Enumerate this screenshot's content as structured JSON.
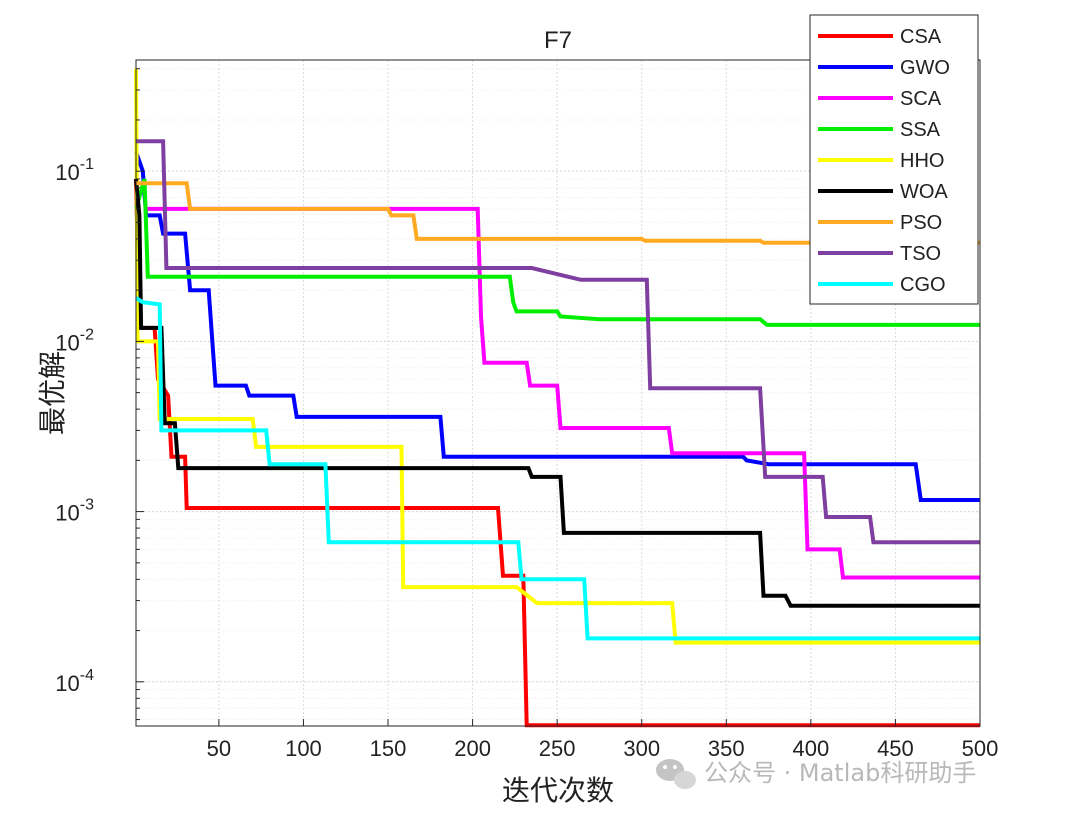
{
  "chart_data": {
    "type": "line",
    "title": "F7",
    "xlabel": "迭代次数",
    "ylabel": "最优解",
    "xlim": [
      1,
      500
    ],
    "ylim": [
      5.5e-05,
      0.45
    ],
    "yscale": "log",
    "grid": true,
    "legend_position": "top-right",
    "xticks": [
      50,
      100,
      150,
      200,
      250,
      300,
      350,
      400,
      450,
      500
    ],
    "yticks": [
      {
        "value": 0.0001,
        "base": "10",
        "exp": "-4"
      },
      {
        "value": 0.001,
        "base": "10",
        "exp": "-3"
      },
      {
        "value": 0.01,
        "base": "10",
        "exp": "-2"
      },
      {
        "value": 0.1,
        "base": "10",
        "exp": "-1"
      }
    ],
    "series": [
      {
        "name": "CSA",
        "color": "#ff0000",
        "points": [
          [
            1,
            0.09
          ],
          [
            3,
            0.012
          ],
          [
            12,
            0.012
          ],
          [
            14,
            0.006
          ],
          [
            20,
            0.0048
          ],
          [
            22,
            0.0021
          ],
          [
            30,
            0.0021
          ],
          [
            31,
            0.00105
          ],
          [
            215,
            0.00105
          ],
          [
            218,
            0.00042
          ],
          [
            230,
            0.00042
          ],
          [
            232,
            5.55e-05
          ],
          [
            500,
            5.55e-05
          ]
        ]
      },
      {
        "name": "GWO",
        "color": "#0000ff",
        "points": [
          [
            1,
            0.13
          ],
          [
            5,
            0.1
          ],
          [
            7,
            0.055
          ],
          [
            15,
            0.055
          ],
          [
            17,
            0.043
          ],
          [
            30,
            0.043
          ],
          [
            33,
            0.02
          ],
          [
            44,
            0.02
          ],
          [
            48,
            0.0055
          ],
          [
            66,
            0.0055
          ],
          [
            68,
            0.0048
          ],
          [
            94,
            0.0048
          ],
          [
            96,
            0.0036
          ],
          [
            181,
            0.0036
          ],
          [
            183,
            0.0021
          ],
          [
            360,
            0.0021
          ],
          [
            362,
            0.002
          ],
          [
            375,
            0.0019
          ],
          [
            462,
            0.0019
          ],
          [
            465,
            0.00117
          ],
          [
            500,
            0.00117
          ]
        ]
      },
      {
        "name": "SCA",
        "color": "#ff00ff",
        "points": [
          [
            7,
            0.06
          ],
          [
            203,
            0.06
          ],
          [
            205,
            0.014
          ],
          [
            207,
            0.0075
          ],
          [
            232,
            0.0075
          ],
          [
            234,
            0.0055
          ],
          [
            250,
            0.0055
          ],
          [
            252,
            0.0031
          ],
          [
            316,
            0.0031
          ],
          [
            318,
            0.0022
          ],
          [
            396,
            0.0022
          ],
          [
            398,
            0.0006
          ],
          [
            417,
            0.0006
          ],
          [
            419,
            0.00041
          ],
          [
            500,
            0.00041
          ]
        ]
      },
      {
        "name": "SSA",
        "color": "#00ee00",
        "points": [
          [
            1,
            0.06
          ],
          [
            6,
            0.09
          ],
          [
            8,
            0.024
          ],
          [
            222,
            0.024
          ],
          [
            224,
            0.017
          ],
          [
            226,
            0.015
          ],
          [
            250,
            0.015
          ],
          [
            252,
            0.014
          ],
          [
            275,
            0.0135
          ],
          [
            370,
            0.0135
          ],
          [
            374,
            0.0125
          ],
          [
            500,
            0.0125
          ]
        ]
      },
      {
        "name": "HHO",
        "color": "#ffff00",
        "points": [
          [
            1,
            0.4
          ],
          [
            2,
            0.01
          ],
          [
            14,
            0.01
          ],
          [
            15,
            0.0035
          ],
          [
            70,
            0.0035
          ],
          [
            72,
            0.0024
          ],
          [
            158,
            0.0024
          ],
          [
            159,
            0.00036
          ],
          [
            226,
            0.00036
          ],
          [
            238,
            0.00029
          ],
          [
            318,
            0.00029
          ],
          [
            320,
            0.00017
          ],
          [
            500,
            0.00017
          ]
        ]
      },
      {
        "name": "WOA",
        "color": "#000000",
        "points": [
          [
            1,
            0.09
          ],
          [
            3,
            0.055
          ],
          [
            4,
            0.012
          ],
          [
            16,
            0.012
          ],
          [
            18,
            0.0033
          ],
          [
            24,
            0.0033
          ],
          [
            26,
            0.0018
          ],
          [
            233,
            0.0018
          ],
          [
            235,
            0.0016
          ],
          [
            252,
            0.0016
          ],
          [
            254,
            0.00075
          ],
          [
            370,
            0.00075
          ],
          [
            372,
            0.00032
          ],
          [
            385,
            0.00032
          ],
          [
            388,
            0.00028
          ],
          [
            500,
            0.00028
          ]
        ]
      },
      {
        "name": "PSO",
        "color": "#ffaa22",
        "points": [
          [
            1,
            0.085
          ],
          [
            31,
            0.085
          ],
          [
            33,
            0.06
          ],
          [
            150,
            0.06
          ],
          [
            152,
            0.055
          ],
          [
            165,
            0.055
          ],
          [
            167,
            0.04
          ],
          [
            300,
            0.04
          ],
          [
            302,
            0.039
          ],
          [
            370,
            0.039
          ],
          [
            372,
            0.038
          ],
          [
            500,
            0.038
          ]
        ]
      },
      {
        "name": "TSO",
        "color": "#7f3fa0",
        "points": [
          [
            1,
            0.15
          ],
          [
            17,
            0.15
          ],
          [
            19,
            0.027
          ],
          [
            235,
            0.027
          ],
          [
            264,
            0.023
          ],
          [
            303,
            0.023
          ],
          [
            305,
            0.0053
          ],
          [
            370,
            0.0053
          ],
          [
            373,
            0.0016
          ],
          [
            407,
            0.0016
          ],
          [
            409,
            0.00093
          ],
          [
            435,
            0.00093
          ],
          [
            437,
            0.00066
          ],
          [
            500,
            0.00066
          ]
        ]
      },
      {
        "name": "CGO",
        "color": "#00ffff",
        "points": [
          [
            1,
            0.018
          ],
          [
            5,
            0.017
          ],
          [
            15,
            0.0165
          ],
          [
            16,
            0.003
          ],
          [
            78,
            0.003
          ],
          [
            80,
            0.0019
          ],
          [
            113,
            0.0019
          ],
          [
            115,
            0.00066
          ],
          [
            227,
            0.00066
          ],
          [
            229,
            0.0004
          ],
          [
            266,
            0.0004
          ],
          [
            268,
            0.00018
          ],
          [
            500,
            0.00018
          ]
        ]
      }
    ]
  },
  "legend": {
    "entries": [
      "CSA",
      "GWO",
      "SCA",
      "SSA",
      "HHO",
      "WOA",
      "PSO",
      "TSO",
      "CGO"
    ]
  },
  "watermark": {
    "icon": "wechat-icon",
    "text": "公众号 · Matlab科研助手"
  }
}
